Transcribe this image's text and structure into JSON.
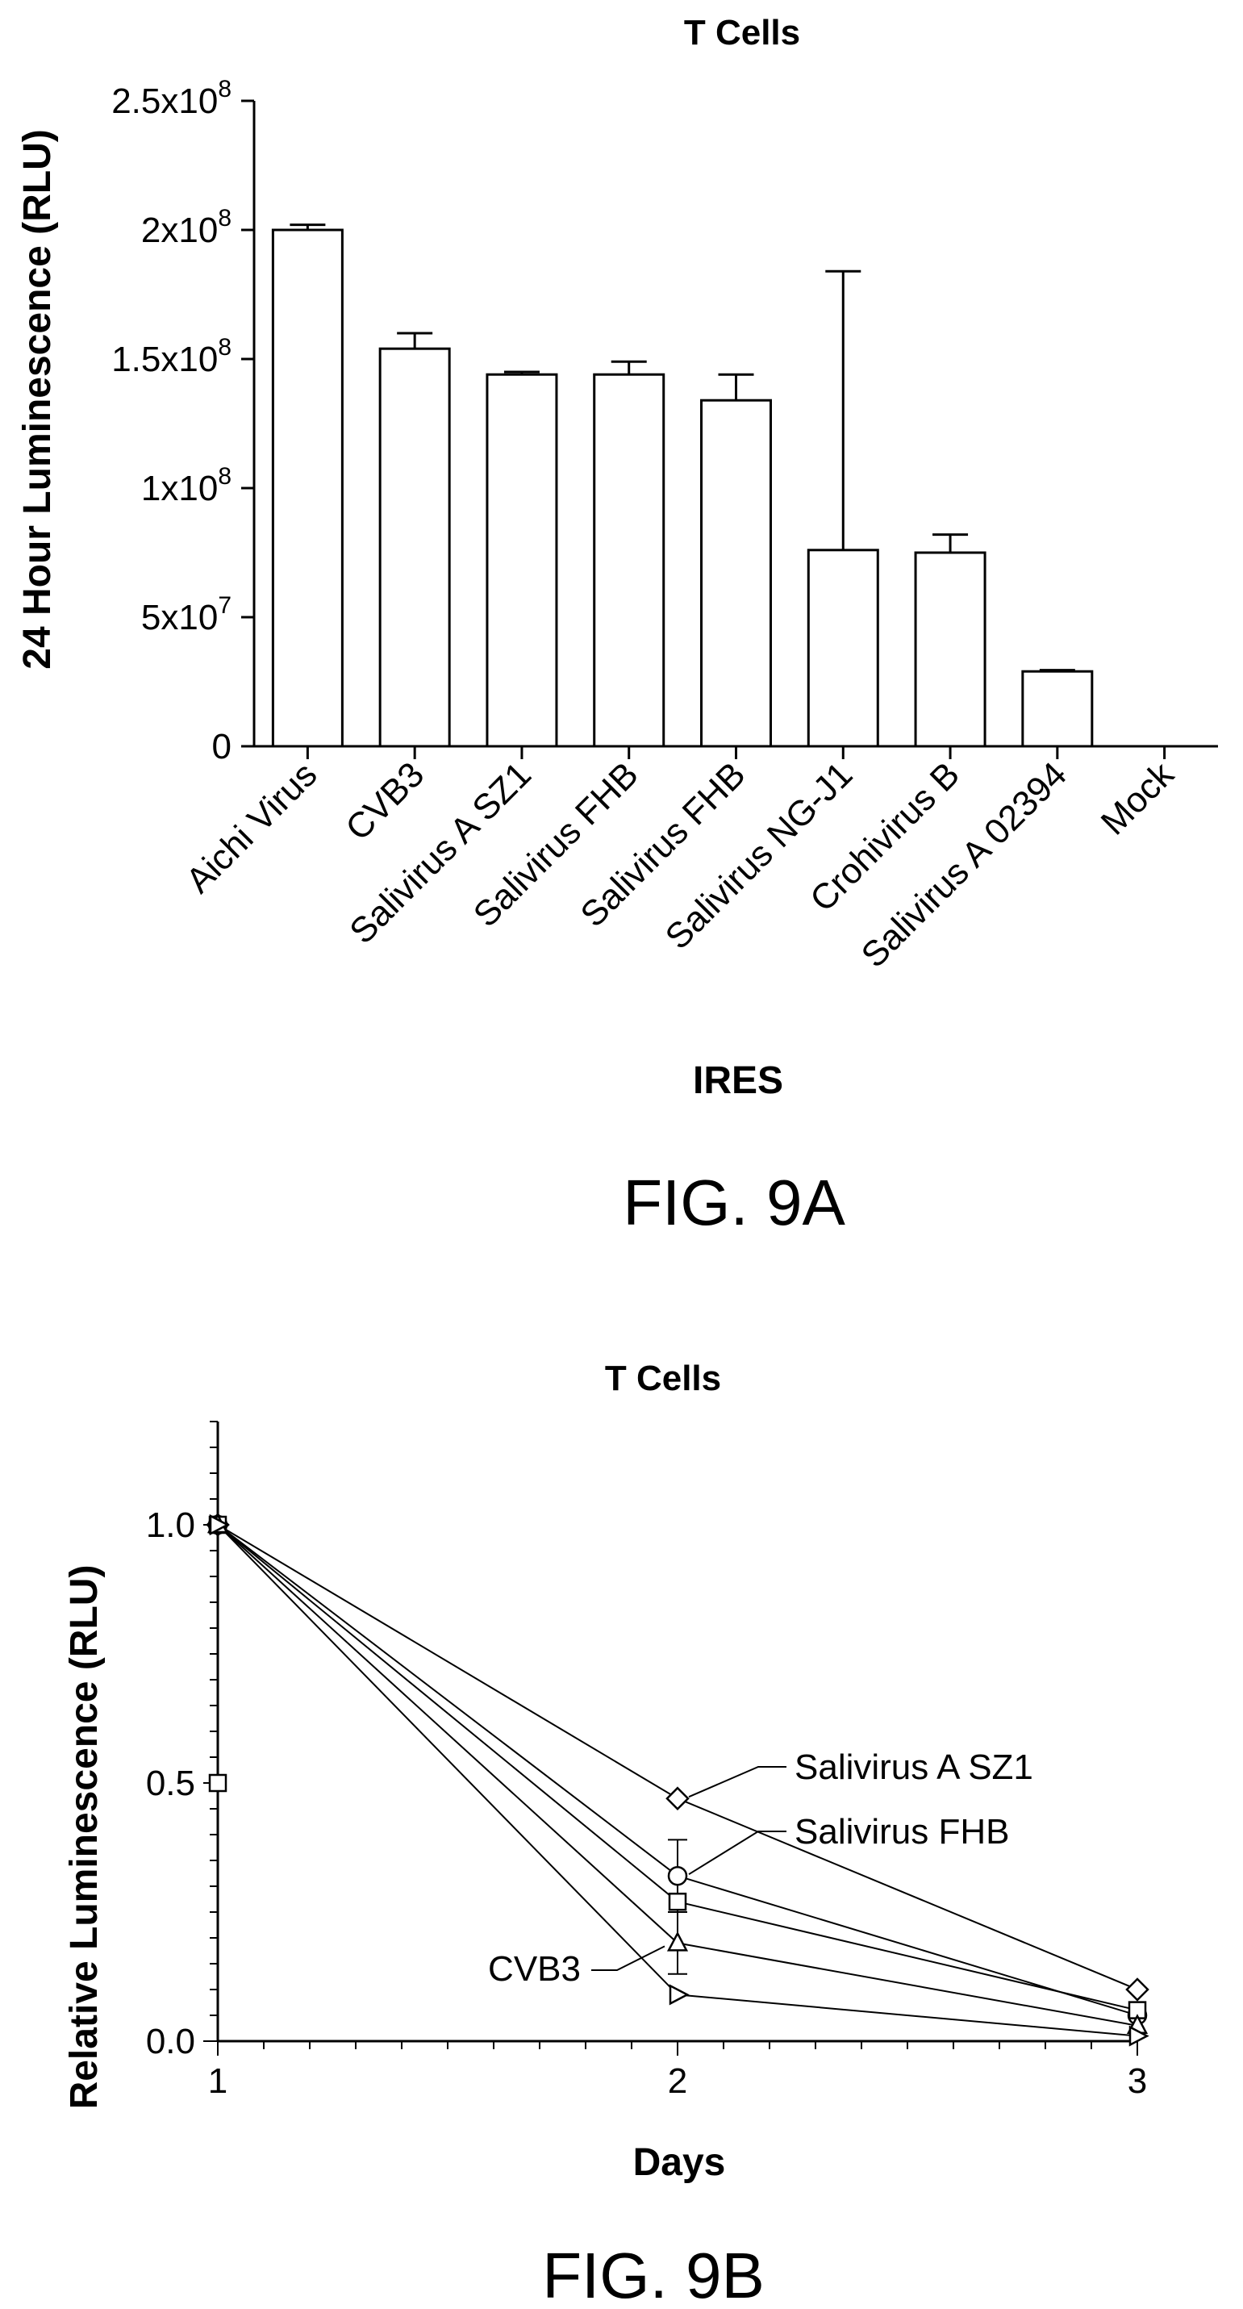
{
  "chart_data": [
    {
      "type": "bar",
      "title": "T Cells",
      "xlabel": "IRES",
      "ylabel": "24 Hour Luminescence (RLU)",
      "figure_label": "FIG. 9A",
      "ylim": [
        0,
        250000000
      ],
      "y_ticks": [
        0,
        50000000,
        100000000,
        150000000,
        200000000,
        250000000
      ],
      "y_tick_labels": [
        {
          "base": "0",
          "exp": ""
        },
        {
          "base": "5x10",
          "exp": "7"
        },
        {
          "base": "1x10",
          "exp": "8"
        },
        {
          "base": "1.5x10",
          "exp": "8"
        },
        {
          "base": "2x10",
          "exp": "8"
        },
        {
          "base": "2.5x10",
          "exp": "8"
        }
      ],
      "categories": [
        "Aichi Virus",
        "CVB3",
        "Salivirus A SZ1",
        "Salivirus FHB",
        "Salivirus FHB",
        "Salivirus NG-J1",
        "Crohivirus B",
        "Salivirus A 02394",
        "Mock"
      ],
      "values": [
        200000000,
        154000000,
        144000000,
        144000000,
        134000000,
        76000000,
        75000000,
        29000000,
        0
      ],
      "error_upper": [
        202000000,
        160000000,
        145000000,
        149000000,
        144000000,
        184000000,
        82000000,
        29500000,
        0
      ]
    },
    {
      "type": "line",
      "title": "T Cells",
      "xlabel": "Days",
      "ylabel": "Relative Luminescence (RLU)",
      "figure_label": "FIG. 9B",
      "x": [
        1,
        2,
        3
      ],
      "xlim": [
        1,
        3
      ],
      "ylim": [
        0,
        1.2
      ],
      "x_ticks": [
        "1",
        "2",
        "3"
      ],
      "y_ticks": [
        "0.0",
        "0.5",
        "1.0"
      ],
      "annotations": [
        "Salivirus A SZ1",
        "Salivirus FHB",
        "CVB3"
      ],
      "series": [
        {
          "name": "Salivirus A SZ1",
          "marker": "diamond",
          "values": [
            1.0,
            0.47,
            0.1
          ]
        },
        {
          "name": "Salivirus FHB",
          "marker": "circle",
          "values": [
            1.0,
            0.32,
            0.05
          ]
        },
        {
          "marker": "square",
          "values": [
            1.0,
            0.27,
            0.06
          ]
        },
        {
          "marker": "triangle-up",
          "values": [
            1.0,
            0.19,
            0.03
          ]
        },
        {
          "name": "CVB3",
          "marker": "triangle-right",
          "values": [
            1.0,
            0.09,
            0.01
          ]
        }
      ],
      "extra_points": [
        {
          "marker": "square",
          "x": 1,
          "y": 0.5
        }
      ],
      "error_bars": [
        {
          "x": 2,
          "low": 0.25,
          "high": 0.39
        },
        {
          "x": 2,
          "low": 0.13,
          "high": 0.25
        }
      ]
    }
  ]
}
